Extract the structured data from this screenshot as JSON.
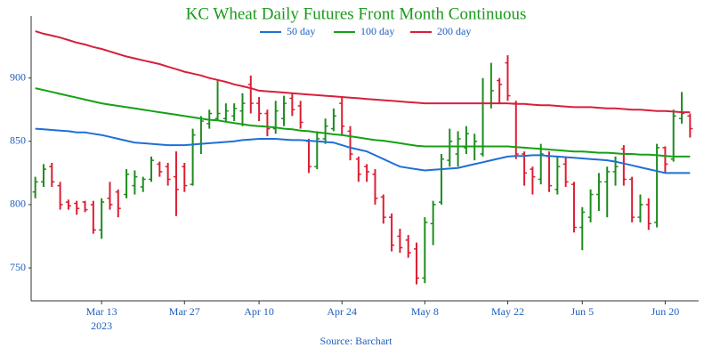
{
  "chart_data": {
    "type": "ohlc",
    "title": "KC Wheat Daily Futures Front Month Continuous",
    "source": "Source: Barchart",
    "year_label": "2023",
    "categories": [
      null,
      null,
      null,
      null,
      null,
      null,
      null,
      null,
      "Mar 13",
      null,
      null,
      null,
      null,
      null,
      null,
      null,
      null,
      null,
      "Mar 27",
      null,
      null,
      null,
      null,
      null,
      null,
      null,
      null,
      "Apr 10",
      null,
      null,
      null,
      null,
      null,
      null,
      null,
      null,
      null,
      "Apr 24",
      null,
      null,
      null,
      null,
      null,
      null,
      null,
      null,
      null,
      "May 8",
      null,
      null,
      null,
      null,
      null,
      null,
      null,
      null,
      null,
      "May 22",
      null,
      null,
      null,
      null,
      null,
      null,
      null,
      null,
      "Jun 5",
      null,
      null,
      null,
      null,
      null,
      null,
      null,
      null,
      null,
      "Jun 20",
      null,
      null,
      null
    ],
    "ohlc": {
      "up_color": "#1e8c1e",
      "down_color": "#dc1e32",
      "open": [
        810,
        818,
        830,
        815,
        802,
        801,
        802,
        800,
        780,
        805,
        810,
        808,
        815,
        814,
        820,
        832,
        830,
        822,
        830,
        816,
        848,
        864,
        868,
        868,
        870,
        874,
        895,
        880,
        872,
        860,
        868,
        884,
        878,
        850,
        830,
        852,
        860,
        880,
        858,
        836,
        830,
        824,
        806,
        790,
        775,
        772,
        765,
        742,
        785,
        802,
        835,
        840,
        845,
        846,
        840,
        880,
        898,
        912,
        880,
        840,
        828,
        820,
        838,
        812,
        832,
        816,
        782,
        790,
        808,
        818,
        826,
        844,
        820,
        790,
        800,
        786,
        845,
        836,
        868,
        870
      ],
      "high": [
        822,
        832,
        833,
        818,
        804,
        803,
        803,
        803,
        805,
        818,
        812,
        828,
        827,
        822,
        838,
        834,
        833,
        842,
        833,
        860,
        870,
        875,
        898,
        880,
        880,
        888,
        902,
        885,
        875,
        882,
        886,
        888,
        882,
        852,
        858,
        868,
        876,
        885,
        862,
        838,
        832,
        828,
        808,
        793,
        781,
        776,
        770,
        790,
        803,
        840,
        860,
        858,
        862,
        856,
        900,
        912,
        900,
        918,
        882,
        842,
        830,
        848,
        842,
        838,
        838,
        818,
        798,
        812,
        825,
        830,
        838,
        847,
        822,
        808,
        805,
        848,
        846,
        875,
        889,
        872
      ],
      "low": [
        805,
        814,
        814,
        796,
        796,
        792,
        794,
        777,
        773,
        796,
        790,
        805,
        808,
        810,
        818,
        822,
        815,
        791,
        810,
        815,
        840,
        860,
        866,
        866,
        866,
        862,
        872,
        866,
        854,
        856,
        862,
        870,
        860,
        825,
        828,
        848,
        858,
        855,
        835,
        818,
        818,
        800,
        785,
        763,
        762,
        758,
        737,
        738,
        768,
        800,
        830,
        830,
        840,
        835,
        838,
        876,
        880,
        882,
        836,
        815,
        808,
        816,
        810,
        808,
        814,
        778,
        764,
        786,
        795,
        790,
        815,
        815,
        786,
        786,
        780,
        782,
        825,
        834,
        864,
        853
      ],
      "close": [
        818,
        828,
        818,
        800,
        799,
        797,
        796,
        780,
        802,
        800,
        797,
        824,
        822,
        820,
        835,
        826,
        820,
        812,
        815,
        855,
        866,
        872,
        872,
        874,
        876,
        880,
        880,
        872,
        860,
        874,
        880,
        875,
        865,
        830,
        852,
        862,
        870,
        862,
        840,
        824,
        826,
        805,
        790,
        768,
        766,
        762,
        742,
        786,
        800,
        836,
        850,
        852,
        856,
        850,
        880,
        890,
        895,
        886,
        840,
        825,
        822,
        840,
        815,
        830,
        818,
        782,
        794,
        808,
        818,
        826,
        830,
        820,
        790,
        800,
        785,
        845,
        832,
        870,
        872,
        860
      ]
    },
    "series": [
      {
        "name": "50 day",
        "color": "#1f6fd6",
        "values": [
          860,
          859.5,
          859,
          858.5,
          858,
          857,
          857,
          856,
          855,
          853.5,
          852,
          850.5,
          849,
          848.5,
          848,
          847.5,
          847,
          847,
          847,
          847.5,
          848,
          848.5,
          849,
          849.5,
          850,
          851,
          851.5,
          852,
          852,
          852,
          851.5,
          851,
          851,
          850.5,
          850,
          849.5,
          849,
          847,
          845,
          843.5,
          842,
          839,
          836,
          833,
          830,
          829,
          828,
          827,
          827.5,
          828,
          828.5,
          829,
          830.5,
          832,
          833.5,
          835,
          836.5,
          838,
          838.5,
          838.5,
          839,
          839,
          838.5,
          838,
          837.5,
          837,
          836.5,
          836,
          835.5,
          835,
          834,
          832.5,
          831,
          829.5,
          828,
          826.5,
          825,
          825,
          825,
          825
        ]
      },
      {
        "name": "100 day",
        "color": "#16a016",
        "values": [
          892,
          890.5,
          889,
          887.5,
          886,
          884.5,
          883,
          881.5,
          880,
          879,
          878,
          877,
          876,
          875,
          874,
          873,
          872,
          871,
          870,
          869,
          868,
          867,
          866.5,
          865.5,
          864.5,
          863.5,
          862.5,
          862,
          861.5,
          861,
          860,
          859.5,
          858.5,
          858,
          857,
          856.5,
          855.5,
          855,
          854,
          853,
          852,
          851,
          850.5,
          849.5,
          848.5,
          847.5,
          846.5,
          846,
          846,
          846,
          846,
          846,
          846,
          846,
          846,
          846,
          846,
          846,
          845.5,
          845,
          844.5,
          844,
          843.5,
          843,
          842.5,
          842,
          842,
          841.5,
          841,
          841,
          840.5,
          840,
          840,
          839.5,
          839.5,
          839,
          838.5,
          838,
          838,
          838
        ]
      },
      {
        "name": "200 day",
        "color": "#d6203c",
        "values": [
          937,
          935,
          933.5,
          932,
          930,
          928,
          926.5,
          924.5,
          923,
          921,
          919,
          917,
          915.5,
          914,
          912.5,
          911,
          909,
          907,
          905,
          903.5,
          902,
          900,
          898.5,
          897,
          895,
          893.5,
          892,
          890,
          889.5,
          889,
          888.5,
          888,
          887.5,
          887,
          886.5,
          886,
          885.5,
          885,
          884.5,
          884,
          883.5,
          883,
          882.5,
          882,
          881.5,
          881,
          880.5,
          880,
          880,
          880,
          880,
          880,
          880,
          880,
          880,
          880,
          880,
          880,
          879.5,
          879.5,
          879,
          878.5,
          878.5,
          878,
          877.5,
          877,
          877,
          877,
          876.5,
          876,
          876,
          875.5,
          875,
          875,
          874.5,
          874,
          874,
          873.5,
          873,
          873
        ]
      }
    ],
    "ylim": [
      724,
      949
    ],
    "yticks": [
      750,
      800,
      850,
      900
    ],
    "grid": false
  }
}
